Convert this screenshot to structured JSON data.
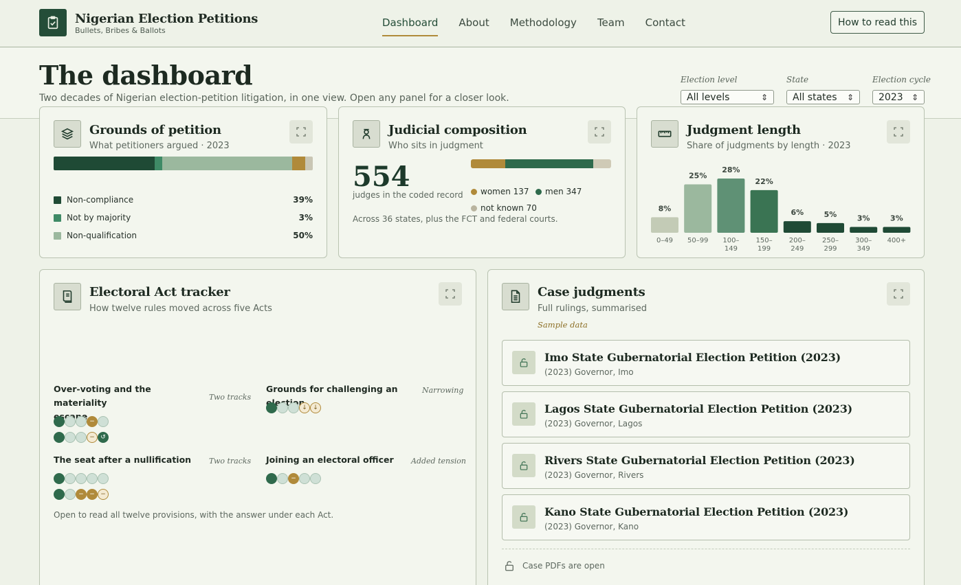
{
  "brand": {
    "title": "Nigerian Election Petitions",
    "subtitle": "Bullets, Bribes & Ballots"
  },
  "nav": [
    {
      "label": "Dashboard",
      "active": true
    },
    {
      "label": "About"
    },
    {
      "label": "Methodology"
    },
    {
      "label": "Team"
    },
    {
      "label": "Contact"
    }
  ],
  "header_button": "How to read this",
  "page": {
    "title": "The dashboard",
    "subtitle": "Two decades of Nigerian election-petition litigation, in one view. Open any panel for a closer look."
  },
  "filters": [
    {
      "label": "Election level",
      "value": "All levels"
    },
    {
      "label": "State",
      "value": "All states"
    },
    {
      "label": "Election cycle",
      "value": "2023"
    }
  ],
  "grounds": {
    "title": "Grounds of petition",
    "subtitle": "What petitioners argued · 2023",
    "segments": [
      {
        "name": "Non-compliance",
        "share": 39,
        "color": "#1f4a35"
      },
      {
        "name": "Not by majority",
        "share": 3,
        "color": "#3f8a66"
      },
      {
        "name": "Non-qualification",
        "share": 50,
        "color": "#9bb89e"
      },
      {
        "name": "",
        "share": 5,
        "color": "#b08a3a"
      },
      {
        "name": "",
        "share": 3,
        "color": "#c9c6b4"
      }
    ],
    "legend": [
      {
        "name": "Non-compliance",
        "pct": "39%",
        "color": "#1f4a35"
      },
      {
        "name": "Not by majority",
        "pct": "3%",
        "color": "#3f8a66"
      },
      {
        "name": "Non-qualification",
        "pct": "50%",
        "color": "#9bb89e"
      }
    ]
  },
  "judicial": {
    "title": "Judicial composition",
    "subtitle": "Who sits in judgment",
    "total": "554",
    "total_caption": "judges in the coded record",
    "women": 137,
    "men": 347,
    "unknown": 70,
    "women_label": "women 137",
    "men_label": "men 347",
    "unknown_label": "not known 70",
    "colors": {
      "women": "#b08a3a",
      "men": "#2f6a4c",
      "unknown": "#cfcab6"
    },
    "note": "Across 36 states, plus the FCT and federal courts."
  },
  "judgment_length": {
    "title": "Judgment length",
    "subtitle": "Share of judgments by length · 2023"
  },
  "chart_data": {
    "type": "bar",
    "categories": [
      "0–49",
      "50–99",
      "100–149",
      "150–199",
      "200–249",
      "250–299",
      "300–349",
      "400+"
    ],
    "category_lines": [
      [
        "0–49"
      ],
      [
        "50–99"
      ],
      [
        "100–",
        "149"
      ],
      [
        "150–",
        "199"
      ],
      [
        "200–",
        "249"
      ],
      [
        "250–",
        "299"
      ],
      [
        "300–",
        "349"
      ],
      [
        "400+"
      ]
    ],
    "values": [
      8,
      25,
      28,
      22,
      6,
      5,
      3,
      3
    ],
    "labels": [
      "8%",
      "25%",
      "28%",
      "22%",
      "6%",
      "5%",
      "3%",
      "3%"
    ],
    "colors": [
      "#c3cbb6",
      "#9bb89e",
      "#5f9175",
      "#3a7453",
      "#1f4a35",
      "#1f4a35",
      "#1f4a35",
      "#1f4a35"
    ],
    "ylim": [
      0,
      28
    ]
  },
  "tracker": {
    "title": "Electoral Act tracker",
    "subtitle": "How twelve rules moved across five Acts",
    "provisions": [
      {
        "name_lines": [
          "Over-voting and the materiality",
          "escape"
        ],
        "tag": "Two tracks",
        "tracks": [
          [
            "dk",
            "lt",
            "lt",
            "gd:−",
            "lt"
          ],
          [
            "dk",
            "lt",
            "lt",
            "go:−",
            "dkr:↺"
          ]
        ]
      },
      {
        "name_lines": [
          "Grounds for challenging an election"
        ],
        "tag": "Narrowing",
        "tracks": [
          [
            "dk",
            "lt",
            "lt",
            "go:↓",
            "go:↓"
          ]
        ]
      },
      {
        "name_lines": [
          "The seat after a nullification"
        ],
        "tag": "Two tracks",
        "tracks": [
          [
            "dk",
            "lt",
            "lt",
            "lt",
            "lt"
          ],
          [
            "dk",
            "lt",
            "gd:−",
            "gd:−",
            "go:−"
          ]
        ]
      },
      {
        "name_lines": [
          "Joining an electoral officer"
        ],
        "tag": "Added tension",
        "tracks": [
          [
            "dk",
            "lt",
            "gd:−",
            "lt",
            "lt"
          ]
        ]
      }
    ],
    "note": "Open to read all twelve provisions, with the answer under each Act."
  },
  "cases": {
    "title": "Case judgments",
    "subtitle": "Full rulings, summarised",
    "sample_label": "Sample data",
    "items": [
      {
        "title": "Imo State Gubernatorial Election Petition (2023)",
        "meta": "(2023) Governor, Imo"
      },
      {
        "title": "Lagos State Gubernatorial Election Petition (2023)",
        "meta": "(2023) Governor, Lagos"
      },
      {
        "title": "Rivers State Gubernatorial Election Petition (2023)",
        "meta": "(2023) Governor, Rivers"
      },
      {
        "title": "Kano State Gubernatorial Election Petition (2023)",
        "meta": "(2023) Governor, Kano"
      }
    ],
    "footer": "Case PDFs are open"
  }
}
